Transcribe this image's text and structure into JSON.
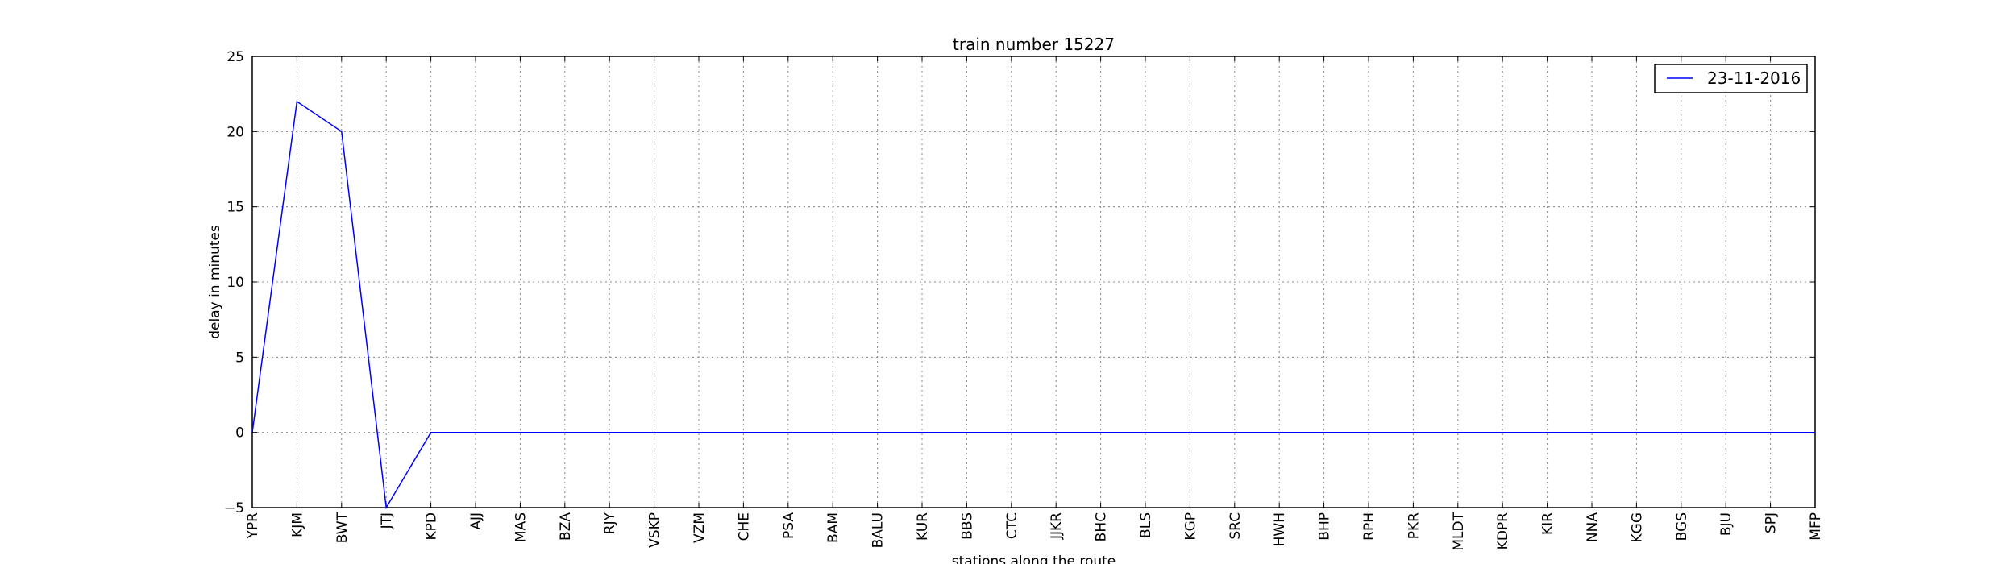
{
  "chart_data": {
    "type": "line",
    "title": "train number 15227",
    "xlabel": "stations along the route",
    "ylabel": "delay in minutes",
    "categories": [
      "YPR",
      "KJM",
      "BWT",
      "JTJ",
      "KPD",
      "AJJ",
      "MAS",
      "BZA",
      "RJY",
      "VSKP",
      "VZM",
      "CHE",
      "PSA",
      "BAM",
      "BALU",
      "KUR",
      "BBS",
      "CTC",
      "JJKR",
      "BHC",
      "BLS",
      "KGP",
      "SRC",
      "HWH",
      "BHP",
      "RPH",
      "PKR",
      "MLDT",
      "KDPR",
      "KIR",
      "NNA",
      "KGG",
      "BGS",
      "BJU",
      "SPJ",
      "MFP"
    ],
    "series": [
      {
        "name": "23-11-2016",
        "color": "#0000ff",
        "values": [
          0,
          22,
          20,
          -5,
          0,
          0,
          0,
          0,
          0,
          0,
          0,
          0,
          0,
          0,
          0,
          0,
          0,
          0,
          0,
          0,
          0,
          0,
          0,
          0,
          0,
          0,
          0,
          0,
          0,
          0,
          0,
          0,
          0,
          0,
          0,
          0
        ]
      }
    ],
    "ylim": [
      -5,
      25
    ],
    "yticks": [
      "−5",
      "0",
      "5",
      "10",
      "15",
      "20",
      "25"
    ],
    "grid": true,
    "legend_position": "top-right"
  }
}
